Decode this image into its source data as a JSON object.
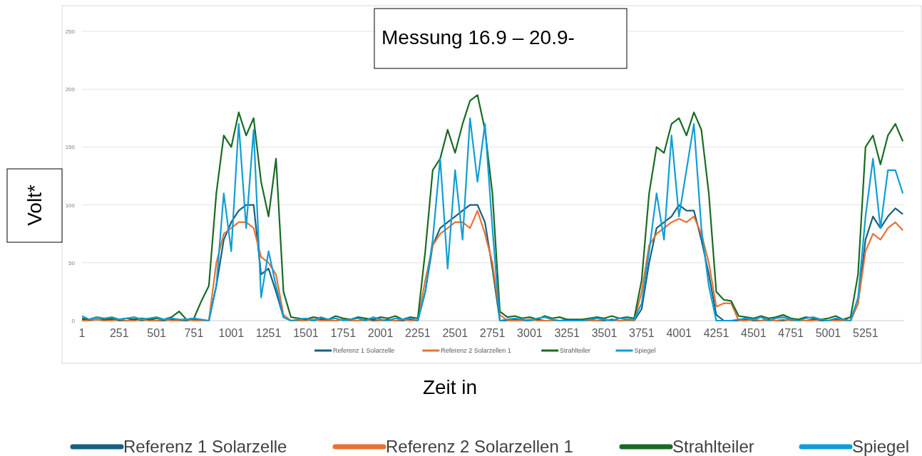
{
  "chart_data": {
    "type": "line",
    "xlabel": "Zeit in",
    "ylabel": "Volt*",
    "annotations": [
      "Messung 16.9 – 20.9-"
    ],
    "x": [
      1,
      51,
      101,
      151,
      201,
      251,
      301,
      351,
      401,
      451,
      501,
      551,
      601,
      651,
      701,
      751,
      801,
      851,
      901,
      951,
      1001,
      1051,
      1101,
      1151,
      1201,
      1251,
      1301,
      1351,
      1401,
      1451,
      1501,
      1551,
      1601,
      1651,
      1701,
      1751,
      1801,
      1851,
      1901,
      1951,
      2001,
      2051,
      2101,
      2151,
      2201,
      2251,
      2301,
      2351,
      2401,
      2451,
      2501,
      2551,
      2601,
      2651,
      2701,
      2751,
      2801,
      2851,
      2901,
      2951,
      3001,
      3051,
      3101,
      3151,
      3201,
      3251,
      3301,
      3351,
      3401,
      3451,
      3501,
      3551,
      3601,
      3651,
      3701,
      3751,
      3801,
      3851,
      3901,
      3951,
      4001,
      4051,
      4101,
      4151,
      4201,
      4251,
      4301,
      4351,
      4401,
      4451,
      4501,
      4551,
      4601,
      4651,
      4701,
      4751,
      4801,
      4851,
      4901,
      4951,
      5001,
      5051,
      5101,
      5151,
      5201,
      5251,
      5301,
      5351,
      5401,
      5451,
      5501
    ],
    "xlim": [
      1,
      5510
    ],
    "xticks": [
      1,
      251,
      501,
      751,
      1001,
      1251,
      1501,
      1751,
      2001,
      2251,
      2501,
      2751,
      3001,
      3251,
      3501,
      3751,
      4001,
      4251,
      4501,
      4751,
      5001,
      5251
    ],
    "ylim": [
      0,
      250
    ],
    "yticks": [
      0,
      50,
      100,
      150,
      200,
      250
    ],
    "grid": "y",
    "legend": "bottom",
    "marker": "none",
    "line_style": "solid",
    "series": [
      {
        "name": "Referenz 1 Solarzelle",
        "color": "#156082",
        "values": [
          1,
          0,
          1,
          0,
          1,
          0,
          0,
          1,
          0,
          1,
          0,
          0,
          1,
          0,
          0,
          1,
          0,
          0,
          30,
          70,
          85,
          95,
          100,
          100,
          40,
          45,
          25,
          3,
          0,
          0,
          1,
          0,
          1,
          0,
          0,
          1,
          0,
          0,
          1,
          0,
          0,
          1,
          0,
          0,
          1,
          0,
          25,
          65,
          80,
          85,
          90,
          95,
          100,
          100,
          85,
          45,
          0,
          0,
          1,
          0,
          0,
          1,
          0,
          0,
          0,
          0,
          0,
          0,
          1,
          0,
          0,
          1,
          0,
          0,
          0,
          10,
          50,
          80,
          85,
          90,
          100,
          95,
          95,
          70,
          40,
          5,
          0,
          0,
          0,
          1,
          0,
          0,
          1,
          0,
          0,
          1,
          0,
          0,
          1,
          0,
          0,
          1,
          0,
          0,
          15,
          70,
          90,
          80,
          90,
          97,
          92
        ]
      },
      {
        "name": "Referenz 2 Solarzellen 1",
        "color": "#e97132",
        "values": [
          0,
          0,
          1,
          0,
          0,
          1,
          0,
          0,
          1,
          0,
          0,
          1,
          0,
          0,
          1,
          0,
          0,
          0,
          50,
          75,
          80,
          85,
          85,
          80,
          55,
          50,
          40,
          5,
          0,
          0,
          0,
          1,
          0,
          0,
          0,
          1,
          0,
          0,
          0,
          1,
          0,
          0,
          0,
          1,
          0,
          0,
          35,
          65,
          75,
          80,
          85,
          85,
          80,
          95,
          75,
          50,
          5,
          0,
          0,
          0,
          1,
          0,
          0,
          0,
          0,
          1,
          0,
          0,
          0,
          0,
          1,
          0,
          0,
          0,
          0,
          25,
          65,
          75,
          80,
          85,
          88,
          85,
          90,
          75,
          50,
          12,
          15,
          15,
          0,
          0,
          1,
          0,
          0,
          0,
          1,
          0,
          0,
          0,
          0,
          1,
          0,
          0,
          0,
          0,
          15,
          60,
          75,
          70,
          80,
          85,
          78
        ]
      },
      {
        "name": "Strahlteiler",
        "color": "#196b24",
        "values": [
          2,
          1,
          3,
          1,
          2,
          1,
          2,
          1,
          2,
          1,
          2,
          1,
          3,
          8,
          1,
          2,
          17,
          30,
          110,
          160,
          150,
          180,
          160,
          175,
          120,
          90,
          140,
          25,
          3,
          2,
          1,
          3,
          2,
          1,
          4,
          2,
          1,
          3,
          2,
          1,
          3,
          2,
          4,
          1,
          3,
          2,
          60,
          130,
          140,
          165,
          145,
          170,
          190,
          195,
          165,
          110,
          8,
          3,
          4,
          2,
          3,
          1,
          4,
          2,
          3,
          1,
          1,
          1,
          2,
          3,
          2,
          4,
          2,
          3,
          2,
          35,
          110,
          150,
          145,
          170,
          175,
          160,
          180,
          165,
          110,
          25,
          18,
          17,
          4,
          3,
          2,
          4,
          2,
          3,
          5,
          2,
          1,
          3,
          2,
          1,
          2,
          4,
          1,
          3,
          40,
          150,
          160,
          135,
          160,
          170,
          155
        ]
      },
      {
        "name": "Spiegel",
        "color": "#0f9ed5",
        "values": [
          4,
          1,
          3,
          2,
          3,
          1,
          2,
          3,
          1,
          2,
          3,
          1,
          2,
          1,
          1,
          2,
          1,
          0,
          30,
          110,
          60,
          170,
          80,
          165,
          20,
          60,
          30,
          3,
          0,
          1,
          2,
          0,
          3,
          1,
          2,
          0,
          1,
          2,
          0,
          3,
          1,
          0,
          2,
          1,
          2,
          0,
          25,
          70,
          140,
          45,
          130,
          70,
          175,
          120,
          170,
          80,
          0,
          1,
          2,
          1,
          0,
          2,
          3,
          1,
          0,
          0,
          0,
          0,
          1,
          2,
          1,
          0,
          2,
          1,
          1,
          15,
          60,
          110,
          70,
          160,
          90,
          130,
          170,
          80,
          30,
          0,
          0,
          0,
          1,
          2,
          1,
          3,
          0,
          2,
          3,
          1,
          0,
          2,
          3,
          1,
          0,
          2,
          1,
          0,
          20,
          90,
          140,
          80,
          130,
          130,
          110
        ]
      }
    ]
  }
}
